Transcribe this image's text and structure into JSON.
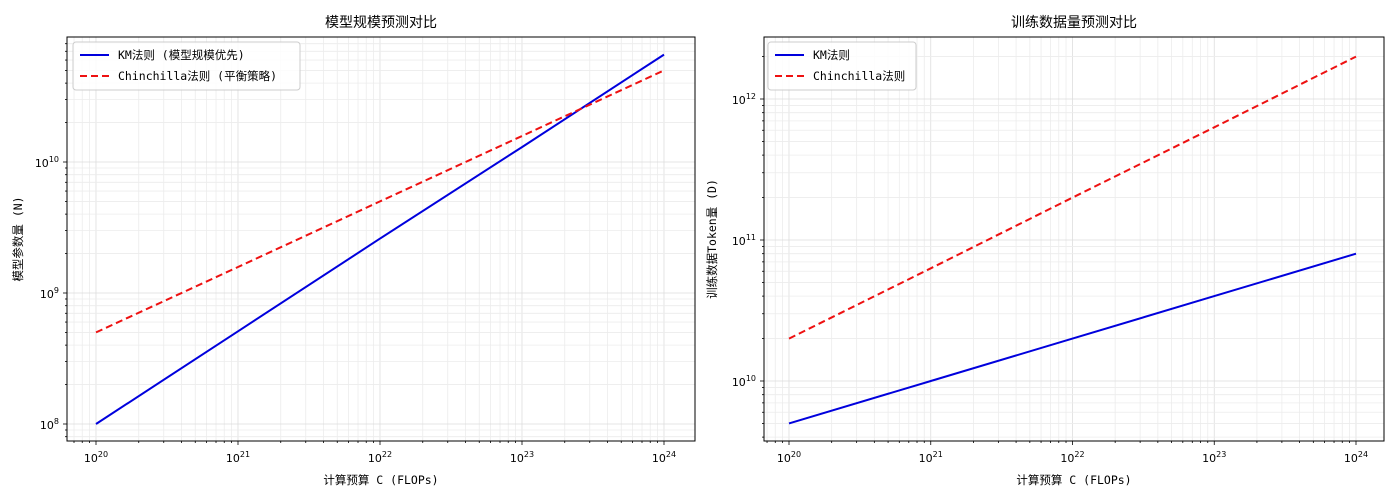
{
  "chart_data": [
    {
      "type": "line",
      "title": "模型规模预测对比",
      "xlabel": "计算预算 C (FLOPs)",
      "ylabel": "模型参数量 (N)",
      "xscale": "log",
      "yscale": "log",
      "xlim": [
        6e+19,
        1.6e+24
      ],
      "ylim": [
        72000000.0,
        90000000000.0
      ],
      "xticks": [
        "10^20",
        "10^21",
        "10^22",
        "10^23",
        "10^24"
      ],
      "yticks": [
        "10^8",
        "10^9",
        "10^10"
      ],
      "grid": true,
      "legend_position": "upper left",
      "x": [
        1e+20,
        1e+21,
        1e+22,
        1e+23,
        1e+24
      ],
      "series": [
        {
          "name": "KM法则 (模型规模优先)",
          "color": "#0000dd",
          "style": "solid",
          "values": [
            100000000.0,
            510000000.0,
            2600000000.0,
            13000000000.0,
            66000000000.0
          ]
        },
        {
          "name": "Chinchilla法则 (平衡策略)",
          "color": "#ee1111",
          "style": "dashed",
          "values": [
            500000000.0,
            1580000000.0,
            5000000000.0,
            15800000000.0,
            50000000000.0
          ]
        }
      ]
    },
    {
      "type": "line",
      "title": "训练数据量预测对比",
      "xlabel": "计算预算 C (FLOPs)",
      "ylabel": "训练数据Token量 (D)",
      "xscale": "log",
      "yscale": "log",
      "xlim": [
        6e+19,
        1.6e+24
      ],
      "ylim": [
        4000000000.0,
        2800000000000.0
      ],
      "xticks": [
        "10^20",
        "10^21",
        "10^22",
        "10^23",
        "10^24"
      ],
      "yticks": [
        "10^10",
        "10^11",
        "10^12"
      ],
      "grid": true,
      "legend_position": "upper left",
      "x": [
        1e+20,
        1e+21,
        1e+22,
        1e+23,
        1e+24
      ],
      "series": [
        {
          "name": "KM法则",
          "color": "#0000dd",
          "style": "solid",
          "values": [
            5000000000.0,
            10000000000.0,
            20000000000.0,
            40000000000.0,
            80000000000.0
          ]
        },
        {
          "name": "Chinchilla法则",
          "color": "#ee1111",
          "style": "dashed",
          "values": [
            20000000000.0,
            63000000000.0,
            200000000000.0,
            630000000000.0,
            2000000000000.0
          ]
        }
      ]
    }
  ],
  "left": {
    "title": "模型规模预测对比",
    "xlabel": "计算预算 C (FLOPs)",
    "ylabel": "模型参数量 (N)",
    "legend": [
      "KM法则 (模型规模优先)",
      "Chinchilla法则 (平衡策略)"
    ],
    "xticks": [
      {
        "base": "10",
        "exp": "20"
      },
      {
        "base": "10",
        "exp": "21"
      },
      {
        "base": "10",
        "exp": "22"
      },
      {
        "base": "10",
        "exp": "23"
      },
      {
        "base": "10",
        "exp": "24"
      }
    ],
    "yticks": [
      {
        "base": "10",
        "exp": "8"
      },
      {
        "base": "10",
        "exp": "9"
      },
      {
        "base": "10",
        "exp": "10"
      }
    ]
  },
  "right": {
    "title": "训练数据量预测对比",
    "xlabel": "计算预算 C (FLOPs)",
    "ylabel": "训练数据Token量 (D)",
    "legend": [
      "KM法则",
      "Chinchilla法则"
    ],
    "xticks": [
      {
        "base": "10",
        "exp": "20"
      },
      {
        "base": "10",
        "exp": "21"
      },
      {
        "base": "10",
        "exp": "22"
      },
      {
        "base": "10",
        "exp": "23"
      },
      {
        "base": "10",
        "exp": "24"
      }
    ],
    "yticks": [
      {
        "base": "10",
        "exp": "10"
      },
      {
        "base": "10",
        "exp": "11"
      },
      {
        "base": "10",
        "exp": "12"
      }
    ]
  },
  "colors": {
    "km": "#0000dd",
    "chinchilla": "#ee1111",
    "grid": "#e6e6e6",
    "axis": "#000000"
  }
}
